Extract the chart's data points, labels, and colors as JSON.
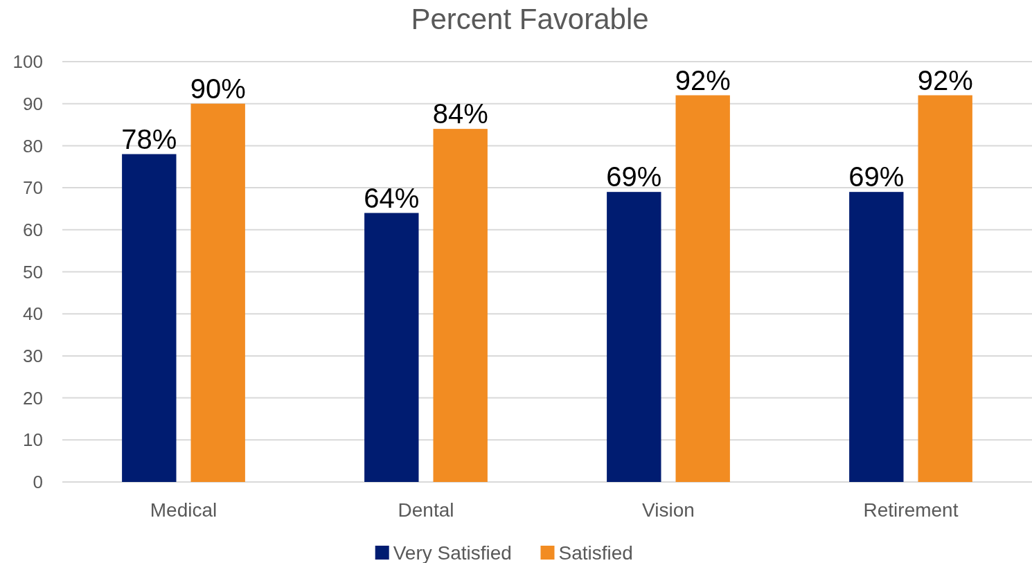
{
  "chart_data": {
    "type": "bar",
    "title": "Percent Favorable",
    "categories": [
      "Medical",
      "Dental",
      "Vision",
      "Retirement"
    ],
    "series": [
      {
        "name": "Very Satisfied",
        "color": "#001c71",
        "values": [
          78,
          64,
          69,
          69
        ],
        "value_labels": [
          "78%",
          "64%",
          "69%",
          "69%"
        ]
      },
      {
        "name": "Satisfied",
        "color": "#f28c22",
        "values": [
          90,
          84,
          92,
          92
        ],
        "value_labels": [
          "90%",
          "84%",
          "92%",
          "92%"
        ]
      }
    ],
    "ylim": [
      0,
      100
    ],
    "yticks": [
      0,
      10,
      20,
      30,
      40,
      50,
      60,
      70,
      80,
      90,
      100
    ],
    "grid": "y",
    "legend": "bottom"
  }
}
